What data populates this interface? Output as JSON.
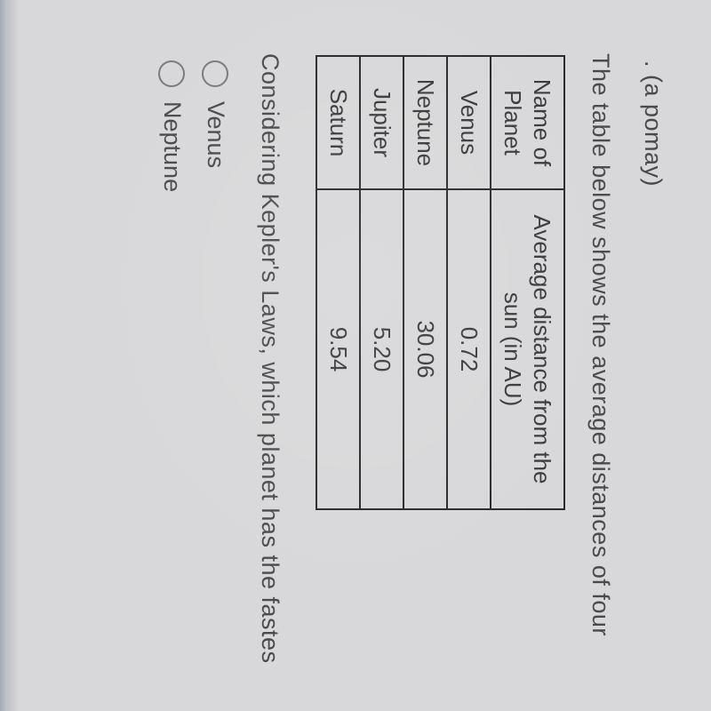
{
  "top_fragment": ". (a pomay)",
  "intro_text": "The table below shows the average distances of four",
  "table": {
    "header_name_line1": "Name of",
    "header_name_line2": "Planet",
    "header_dist_line1": "Average distance from the",
    "header_dist_line2": "sun (in AU)",
    "rows": [
      {
        "name": "Venus",
        "distance": "0.72"
      },
      {
        "name": "Neptune",
        "distance": "30.06"
      },
      {
        "name": "Jupiter",
        "distance": "5.20"
      },
      {
        "name": "Saturn",
        "distance": "9.54"
      }
    ]
  },
  "question_text": "Considering Kepler's Laws, which planet has the fastes",
  "options": [
    {
      "label": "Venus"
    },
    {
      "label": "Neptune"
    }
  ],
  "colors": {
    "background": "#d8d8da",
    "text": "#3a3a3c",
    "border": "#2a2a2c",
    "radio_border": "#7a7a7c"
  },
  "fonts": {
    "body_size_pt": 20,
    "family": "Arial"
  }
}
